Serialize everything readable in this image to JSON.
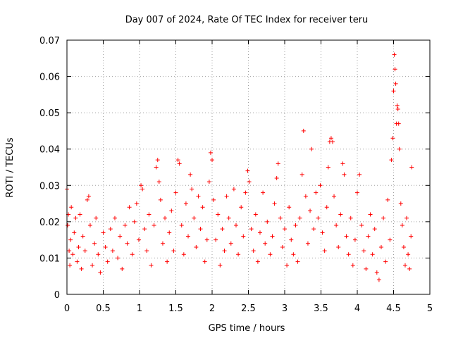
{
  "chart_data": {
    "type": "scatter",
    "title": "Day 007 of 2024, Rate Of TEC Index for receiver teru",
    "xlabel": "GPS time / hours",
    "ylabel": "ROTI / TECUs",
    "xlim": [
      0,
      5
    ],
    "ylim": [
      0,
      0.07
    ],
    "x_ticks": [
      0,
      0.5,
      1,
      1.5,
      2,
      2.5,
      3,
      3.5,
      4,
      4.5,
      5
    ],
    "x_tick_labels": [
      "0",
      "0.5",
      "1",
      "1.5",
      "2",
      "2.5",
      "3",
      "3.5",
      "4",
      "4.5",
      "5"
    ],
    "y_ticks": [
      0,
      0.01,
      0.02,
      0.03,
      0.04,
      0.05,
      0.06,
      0.07
    ],
    "y_tick_labels": [
      "0",
      "0.01",
      "0.02",
      "0.03",
      "0.04",
      "0.05",
      "0.06",
      "0.07"
    ],
    "grid": true,
    "marker": "plus",
    "marker_color": "#ff0000",
    "series": [
      {
        "name": "ROTI",
        "points": [
          [
            0.0,
            0.029
          ],
          [
            0.01,
            0.019
          ],
          [
            0.02,
            0.022
          ],
          [
            0.03,
            0.012
          ],
          [
            0.04,
            0.008
          ],
          [
            0.05,
            0.015
          ],
          [
            0.06,
            0.024
          ],
          [
            0.08,
            0.011
          ],
          [
            0.1,
            0.017
          ],
          [
            0.12,
            0.021
          ],
          [
            0.14,
            0.009
          ],
          [
            0.16,
            0.013
          ],
          [
            0.18,
            0.022
          ],
          [
            0.2,
            0.007
          ],
          [
            0.22,
            0.016
          ],
          [
            0.25,
            0.012
          ],
          [
            0.28,
            0.026
          ],
          [
            0.3,
            0.027
          ],
          [
            0.32,
            0.019
          ],
          [
            0.35,
            0.008
          ],
          [
            0.38,
            0.014
          ],
          [
            0.4,
            0.021
          ],
          [
            0.43,
            0.011
          ],
          [
            0.46,
            0.006
          ],
          [
            0.5,
            0.017
          ],
          [
            0.53,
            0.013
          ],
          [
            0.56,
            0.009
          ],
          [
            0.6,
            0.018
          ],
          [
            0.63,
            0.012
          ],
          [
            0.66,
            0.021
          ],
          [
            0.7,
            0.01
          ],
          [
            0.73,
            0.016
          ],
          [
            0.76,
            0.007
          ],
          [
            0.8,
            0.019
          ],
          [
            0.83,
            0.014
          ],
          [
            0.86,
            0.024
          ],
          [
            0.9,
            0.011
          ],
          [
            0.93,
            0.02
          ],
          [
            0.96,
            0.025
          ],
          [
            0.99,
            0.015
          ],
          [
            1.02,
            0.03
          ],
          [
            1.04,
            0.029
          ],
          [
            1.07,
            0.018
          ],
          [
            1.1,
            0.012
          ],
          [
            1.13,
            0.022
          ],
          [
            1.16,
            0.008
          ],
          [
            1.2,
            0.019
          ],
          [
            1.23,
            0.035
          ],
          [
            1.25,
            0.037
          ],
          [
            1.27,
            0.031
          ],
          [
            1.29,
            0.026
          ],
          [
            1.32,
            0.014
          ],
          [
            1.35,
            0.021
          ],
          [
            1.38,
            0.009
          ],
          [
            1.41,
            0.017
          ],
          [
            1.44,
            0.023
          ],
          [
            1.47,
            0.012
          ],
          [
            1.5,
            0.028
          ],
          [
            1.53,
            0.037
          ],
          [
            1.55,
            0.036
          ],
          [
            1.58,
            0.019
          ],
          [
            1.61,
            0.011
          ],
          [
            1.64,
            0.025
          ],
          [
            1.67,
            0.016
          ],
          [
            1.7,
            0.033
          ],
          [
            1.72,
            0.029
          ],
          [
            1.75,
            0.021
          ],
          [
            1.78,
            0.013
          ],
          [
            1.81,
            0.027
          ],
          [
            1.84,
            0.018
          ],
          [
            1.87,
            0.024
          ],
          [
            1.9,
            0.009
          ],
          [
            1.93,
            0.015
          ],
          [
            1.96,
            0.031
          ],
          [
            1.98,
            0.039
          ],
          [
            2.0,
            0.037
          ],
          [
            2.02,
            0.026
          ],
          [
            2.05,
            0.015
          ],
          [
            2.08,
            0.022
          ],
          [
            2.11,
            0.008
          ],
          [
            2.14,
            0.018
          ],
          [
            2.17,
            0.012
          ],
          [
            2.2,
            0.027
          ],
          [
            2.23,
            0.021
          ],
          [
            2.26,
            0.014
          ],
          [
            2.3,
            0.029
          ],
          [
            2.33,
            0.019
          ],
          [
            2.36,
            0.011
          ],
          [
            2.4,
            0.024
          ],
          [
            2.43,
            0.016
          ],
          [
            2.46,
            0.028
          ],
          [
            2.49,
            0.034
          ],
          [
            2.51,
            0.031
          ],
          [
            2.54,
            0.018
          ],
          [
            2.57,
            0.012
          ],
          [
            2.6,
            0.022
          ],
          [
            2.63,
            0.009
          ],
          [
            2.66,
            0.017
          ],
          [
            2.7,
            0.028
          ],
          [
            2.73,
            0.014
          ],
          [
            2.76,
            0.02
          ],
          [
            2.8,
            0.011
          ],
          [
            2.83,
            0.016
          ],
          [
            2.86,
            0.025
          ],
          [
            2.89,
            0.032
          ],
          [
            2.91,
            0.036
          ],
          [
            2.94,
            0.021
          ],
          [
            2.97,
            0.013
          ],
          [
            3.0,
            0.018
          ],
          [
            3.03,
            0.008
          ],
          [
            3.06,
            0.024
          ],
          [
            3.09,
            0.015
          ],
          [
            3.12,
            0.011
          ],
          [
            3.15,
            0.019
          ],
          [
            3.18,
            0.009
          ],
          [
            3.21,
            0.021
          ],
          [
            3.24,
            0.033
          ],
          [
            3.26,
            0.045
          ],
          [
            3.29,
            0.027
          ],
          [
            3.32,
            0.014
          ],
          [
            3.35,
            0.023
          ],
          [
            3.37,
            0.04
          ],
          [
            3.4,
            0.018
          ],
          [
            3.43,
            0.028
          ],
          [
            3.46,
            0.021
          ],
          [
            3.49,
            0.03
          ],
          [
            3.52,
            0.017
          ],
          [
            3.55,
            0.012
          ],
          [
            3.58,
            0.024
          ],
          [
            3.6,
            0.035
          ],
          [
            3.62,
            0.042
          ],
          [
            3.64,
            0.043
          ],
          [
            3.66,
            0.042
          ],
          [
            3.68,
            0.027
          ],
          [
            3.71,
            0.019
          ],
          [
            3.74,
            0.013
          ],
          [
            3.77,
            0.022
          ],
          [
            3.8,
            0.036
          ],
          [
            3.82,
            0.033
          ],
          [
            3.85,
            0.016
          ],
          [
            3.88,
            0.011
          ],
          [
            3.91,
            0.021
          ],
          [
            3.94,
            0.008
          ],
          [
            3.97,
            0.015
          ],
          [
            4.0,
            0.028
          ],
          [
            4.03,
            0.033
          ],
          [
            4.06,
            0.019
          ],
          [
            4.09,
            0.012
          ],
          [
            4.12,
            0.007
          ],
          [
            4.15,
            0.016
          ],
          [
            4.18,
            0.022
          ],
          [
            4.21,
            0.011
          ],
          [
            4.24,
            0.018
          ],
          [
            4.27,
            0.006
          ],
          [
            4.3,
            0.004
          ],
          [
            4.33,
            0.013
          ],
          [
            4.36,
            0.021
          ],
          [
            4.39,
            0.009
          ],
          [
            4.42,
            0.026
          ],
          [
            4.45,
            0.015
          ],
          [
            4.47,
            0.037
          ],
          [
            4.49,
            0.043
          ],
          [
            4.5,
            0.056
          ],
          [
            4.51,
            0.066
          ],
          [
            4.52,
            0.062
          ],
          [
            4.53,
            0.058
          ],
          [
            4.54,
            0.047
          ],
          [
            4.55,
            0.052
          ],
          [
            4.56,
            0.051
          ],
          [
            4.57,
            0.047
          ],
          [
            4.58,
            0.04
          ],
          [
            4.6,
            0.025
          ],
          [
            4.62,
            0.019
          ],
          [
            4.64,
            0.013
          ],
          [
            4.66,
            0.008
          ],
          [
            4.68,
            0.021
          ],
          [
            4.7,
            0.011
          ],
          [
            4.72,
            0.007
          ],
          [
            4.74,
            0.016
          ],
          [
            4.75,
            0.035
          ]
        ]
      }
    ]
  }
}
